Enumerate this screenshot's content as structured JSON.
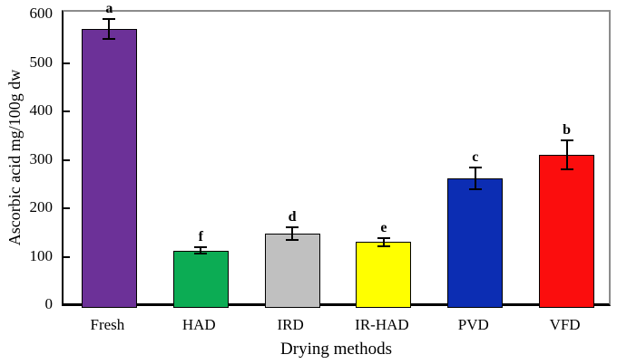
{
  "figure": {
    "background": "#ffffff",
    "frame_color": "#8c8c8c",
    "axis_color": "#000000"
  },
  "chart_data": {
    "type": "bar",
    "title": "",
    "xlabel": "Drying methods",
    "ylabel": "Ascorbic acid mg/100g dw",
    "categories": [
      "Fresh",
      "HAD",
      "IRD",
      "IR-HAD",
      "PVD",
      "VFD"
    ],
    "values": [
      570,
      113,
      147,
      130,
      262,
      310
    ],
    "errors": [
      20,
      7,
      13,
      9,
      22,
      30
    ],
    "sig_letters": [
      "a",
      "f",
      "d",
      "e",
      "c",
      "b"
    ],
    "bar_colors": [
      "#6C3198",
      "#0CAC54",
      "#C0C0C0",
      "#FFFF00",
      "#0C2DB3",
      "#FB0D0D"
    ],
    "bar_edge_color": "#000000",
    "error_bar_color": "#000000",
    "ylim": [
      0,
      600
    ],
    "yticks": [
      0,
      100,
      200,
      300,
      400,
      500,
      600
    ],
    "grid": false,
    "legend": null
  }
}
